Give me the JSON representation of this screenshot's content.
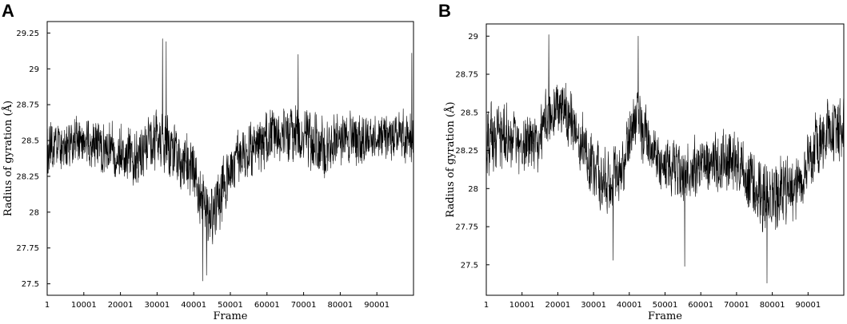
{
  "chart_data": [
    {
      "type": "line",
      "panel_label": "A",
      "xlabel": "Frame",
      "ylabel": "Radius of gyration (Å)",
      "xlim": [
        1,
        100000
      ],
      "ylim": [
        27.42,
        29.33
      ],
      "xticks": [
        1,
        10001,
        20001,
        30001,
        40001,
        50001,
        60001,
        70001,
        80001,
        90001
      ],
      "xtick_labels": [
        "1",
        "10001",
        "20001",
        "30001",
        "40001",
        "50001",
        "60001",
        "70001",
        "80001",
        "90001"
      ],
      "yticks": [
        27.5,
        27.75,
        28,
        28.25,
        28.5,
        28.75,
        29,
        29.25
      ],
      "ytick_labels": [
        "27.5",
        "27.75",
        "28",
        "28.25",
        "28.5",
        "28.75",
        "29",
        "29.25"
      ],
      "grid": false,
      "legend": false,
      "series": [
        {
          "x": [
            1,
            5001,
            10001,
            15001,
            20001,
            25001,
            30001,
            35001,
            40001,
            42001,
            44001,
            46001,
            50001,
            55001,
            60001,
            65001,
            70001,
            75001,
            80001,
            85001,
            90001,
            95001,
            100000
          ],
          "y": [
            28.42,
            28.47,
            28.5,
            28.45,
            28.43,
            28.4,
            28.5,
            28.42,
            28.28,
            28.05,
            27.95,
            28.05,
            28.3,
            28.42,
            28.5,
            28.55,
            28.52,
            28.45,
            28.5,
            28.5,
            28.55,
            28.52,
            28.52
          ],
          "noise_amplitude": [
            0.17,
            0.17,
            0.17,
            0.17,
            0.17,
            0.18,
            0.2,
            0.19,
            0.19,
            0.22,
            0.22,
            0.22,
            0.18,
            0.18,
            0.19,
            0.19,
            0.21,
            0.2,
            0.17,
            0.17,
            0.17,
            0.17,
            0.17
          ],
          "extremes": [
            {
              "x": 31501,
              "y": 29.21
            },
            {
              "x": 32501,
              "y": 29.19
            },
            {
              "x": 68501,
              "y": 29.1
            },
            {
              "x": 99501,
              "y": 29.11
            },
            {
              "x": 42501,
              "y": 27.52
            },
            {
              "x": 43501,
              "y": 27.56
            }
          ]
        }
      ]
    },
    {
      "type": "line",
      "panel_label": "B",
      "xlabel": "Frame",
      "ylabel": "Radius of gyration (Å)",
      "xlim": [
        1,
        100000
      ],
      "ylim": [
        27.3,
        29.08
      ],
      "xticks": [
        1,
        10001,
        20001,
        30001,
        40001,
        50001,
        60001,
        70001,
        80001,
        90001
      ],
      "xtick_labels": [
        "1",
        "10001",
        "20001",
        "30001",
        "40001",
        "50001",
        "60001",
        "70001",
        "80001",
        "90001"
      ],
      "yticks": [
        27.5,
        27.75,
        28,
        28.25,
        28.5,
        28.75,
        29
      ],
      "ytick_labels": [
        "27.5",
        "27.75",
        "28",
        "28.25",
        "28.5",
        "28.75",
        "29"
      ],
      "grid": false,
      "legend": false,
      "series": [
        {
          "x": [
            1,
            5001,
            10001,
            15001,
            18001,
            22001,
            26001,
            30001,
            35001,
            38001,
            42001,
            46001,
            50001,
            55001,
            60001,
            65001,
            70001,
            75001,
            80001,
            85001,
            88001,
            92001,
            96001,
            100000
          ],
          "y": [
            28.3,
            28.35,
            28.3,
            28.3,
            28.55,
            28.5,
            28.35,
            28.1,
            28.05,
            28.15,
            28.5,
            28.25,
            28.15,
            28.1,
            28.15,
            28.15,
            28.2,
            28.0,
            27.95,
            28.0,
            28.0,
            28.3,
            28.35,
            28.4
          ],
          "noise_amplitude": [
            0.2,
            0.2,
            0.19,
            0.18,
            0.2,
            0.18,
            0.18,
            0.2,
            0.19,
            0.18,
            0.2,
            0.18,
            0.18,
            0.18,
            0.18,
            0.18,
            0.19,
            0.2,
            0.22,
            0.2,
            0.2,
            0.2,
            0.2,
            0.2
          ],
          "extremes": [
            {
              "x": 17501,
              "y": 29.01
            },
            {
              "x": 42501,
              "y": 29.0
            },
            {
              "x": 55501,
              "y": 27.49
            },
            {
              "x": 78501,
              "y": 27.38
            },
            {
              "x": 35501,
              "y": 27.53
            }
          ]
        }
      ]
    }
  ]
}
